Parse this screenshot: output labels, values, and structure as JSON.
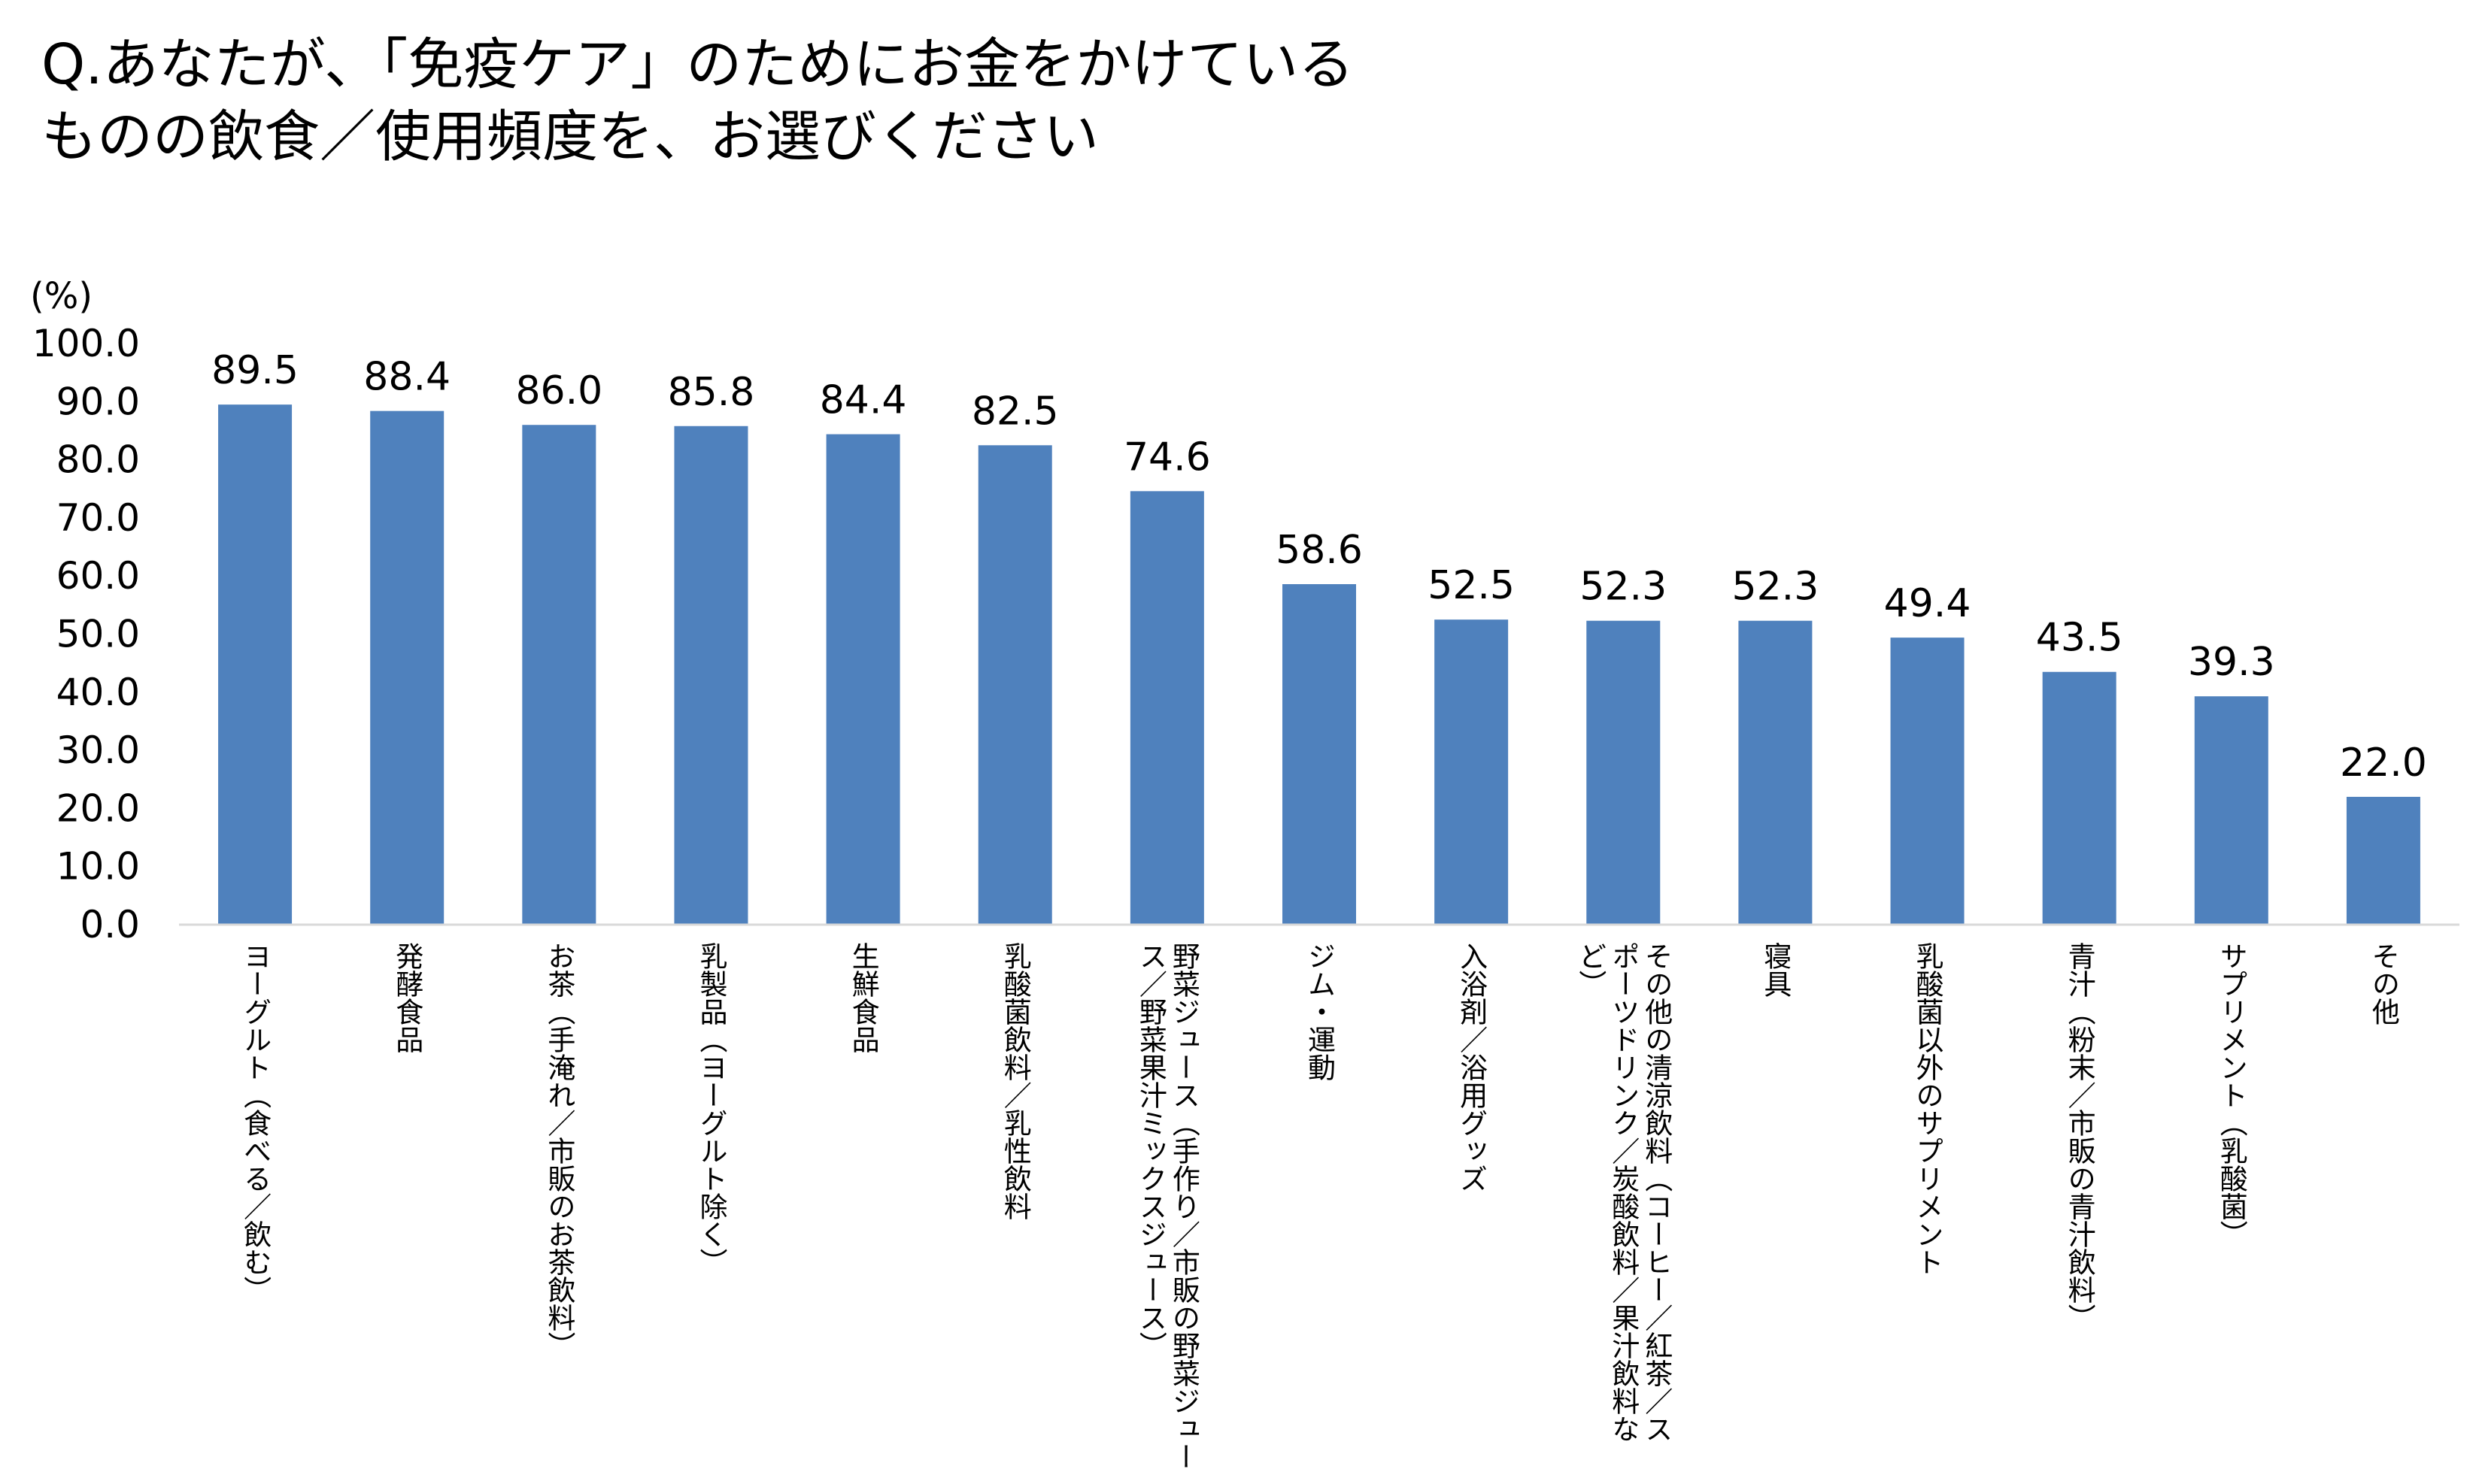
{
  "page": {
    "title_lines": [
      "Q.あなたが、「免疫ケア」のためにお金をかけている",
      "ものの飲食／使用頻度を、お選びください"
    ]
  },
  "chart_data": {
    "type": "bar",
    "title": "Q.あなたが、「免疫ケア」のためにお金をかけているものの飲食／使用頻度を、お選びください",
    "unit_label": "(%)",
    "xlabel": "",
    "ylabel": "(%)",
    "ylim": [
      0,
      100
    ],
    "y_ticks": [
      "0.0",
      "10.0",
      "20.0",
      "30.0",
      "40.0",
      "50.0",
      "60.0",
      "70.0",
      "80.0",
      "90.0",
      "100.0"
    ],
    "grid": false,
    "bar_color": "#4F81BD",
    "categories": [
      [
        "ヨーグルト（食べる／飲む）"
      ],
      [
        "発酵食品"
      ],
      [
        "お茶（手淹れ／市販のお茶飲料）"
      ],
      [
        "乳製品（ヨーグルト除く）"
      ],
      [
        "生鮮食品"
      ],
      [
        "乳酸菌飲料／乳性飲料"
      ],
      [
        "野菜ジュース（手作り／市販の野菜ジュー",
        "ス／野菜果汁ミックスジュース）"
      ],
      [
        "ジム・運動"
      ],
      [
        "入浴剤／浴用グッズ"
      ],
      [
        "その他の清涼飲料（コーヒー／紅茶／ス",
        "ポーツドリンク／炭酸飲料／果汁飲料な",
        "ど）"
      ],
      [
        "寝具"
      ],
      [
        "乳酸菌以外のサプリメント"
      ],
      [
        "青汁（粉末／市販の青汁飲料）"
      ],
      [
        "サプリメント（乳酸菌）"
      ],
      [
        "その他"
      ]
    ],
    "values": [
      89.5,
      88.4,
      86.0,
      85.8,
      84.4,
      82.5,
      74.6,
      58.6,
      52.5,
      52.3,
      52.3,
      49.4,
      43.5,
      39.3,
      22.0
    ],
    "value_labels": [
      "89.5",
      "88.4",
      "86.0",
      "85.8",
      "84.4",
      "82.5",
      "74.6",
      "58.6",
      "52.5",
      "52.3",
      "52.3",
      "49.4",
      "43.5",
      "39.3",
      "22.0"
    ]
  }
}
